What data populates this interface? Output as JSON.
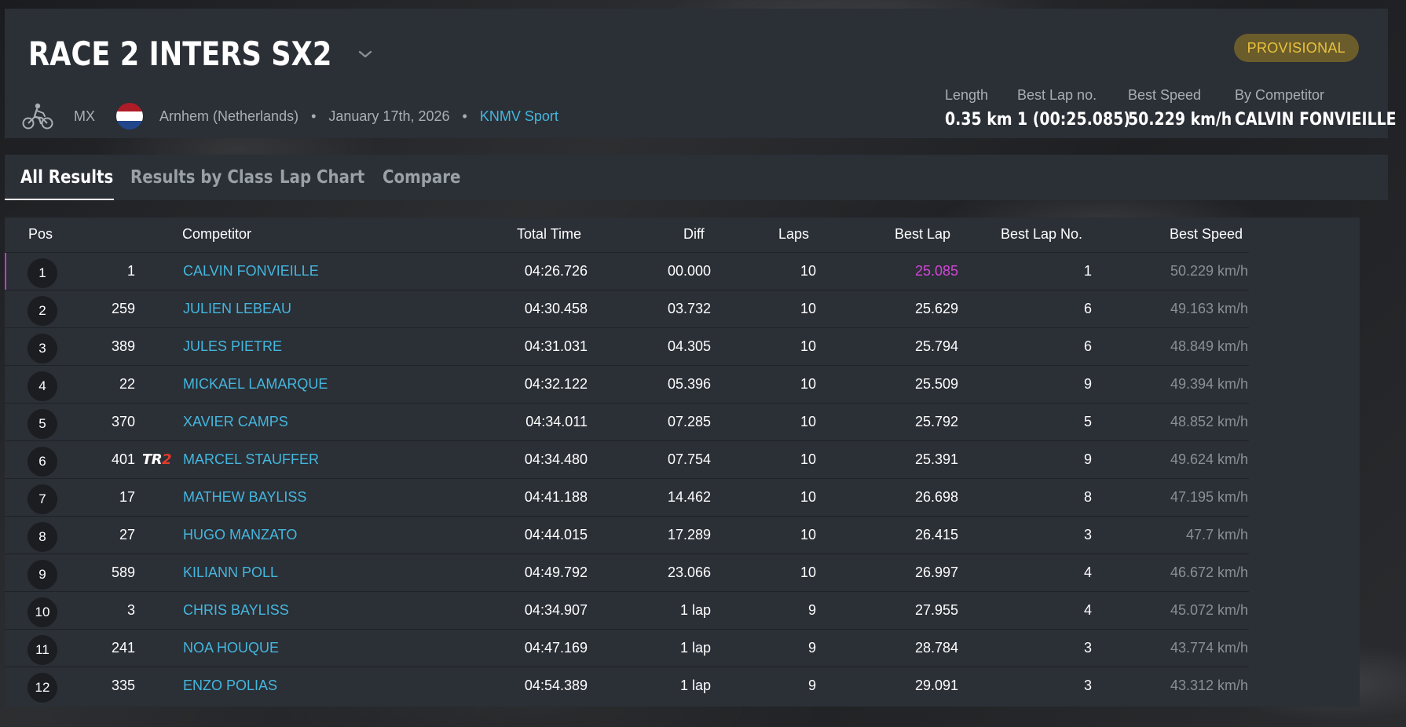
{
  "header": {
    "title": "RACE 2 INTERS SX2",
    "status_badge": "PROVISIONAL",
    "discipline": "MX",
    "location": "Arnhem (Netherlands)",
    "date": "January 17th, 2026",
    "organizer": "KNMV Sport",
    "separator": "•",
    "flag_colors": [
      "#ae1c28",
      "#ffffff",
      "#21468b"
    ],
    "stats": [
      {
        "label": "Length",
        "value": "0.35 km"
      },
      {
        "label": "Best Lap no.",
        "value": "1 (00:25.085)"
      },
      {
        "label": "Best Speed",
        "value": "50.229 km/h"
      },
      {
        "label": "By Competitor",
        "value": "CALVIN FONVIEILLE"
      }
    ]
  },
  "tabs": [
    "All Results",
    "Results by Class",
    "Lap Chart",
    "Compare"
  ],
  "table": {
    "columns": [
      "Pos",
      "Competitor",
      "Total Time",
      "Diff",
      "Laps",
      "Best Lap",
      "Best Lap No.",
      "Best Speed"
    ],
    "rows": [
      {
        "pos": "1",
        "num": "1",
        "name": "CALVIN FONVIEILLE",
        "total": "04:26.726",
        "diff": "00.000",
        "laps": "10",
        "best_lap": "25.085",
        "best_lap_no": "1",
        "best_speed": "50.229 km/h"
      },
      {
        "pos": "2",
        "num": "259",
        "name": "JULIEN LEBEAU",
        "total": "04:30.458",
        "diff": "03.732",
        "laps": "10",
        "best_lap": "25.629",
        "best_lap_no": "6",
        "best_speed": "49.163 km/h"
      },
      {
        "pos": "3",
        "num": "389",
        "name": "JULES PIETRE",
        "total": "04:31.031",
        "diff": "04.305",
        "laps": "10",
        "best_lap": "25.794",
        "best_lap_no": "6",
        "best_speed": "48.849 km/h"
      },
      {
        "pos": "4",
        "num": "22",
        "name": "MICKAEL LAMARQUE",
        "total": "04:32.122",
        "diff": "05.396",
        "laps": "10",
        "best_lap": "25.509",
        "best_lap_no": "9",
        "best_speed": "49.394 km/h"
      },
      {
        "pos": "5",
        "num": "370",
        "name": "XAVIER CAMPS",
        "total": "04:34.011",
        "diff": "07.285",
        "laps": "10",
        "best_lap": "25.792",
        "best_lap_no": "5",
        "best_speed": "48.852 km/h"
      },
      {
        "pos": "6",
        "num": "401",
        "name": "MARCEL STAUFFER",
        "total": "04:34.480",
        "diff": "07.754",
        "laps": "10",
        "best_lap": "25.391",
        "best_lap_no": "9",
        "best_speed": "49.624 km/h",
        "team_logo": [
          "TR",
          "2"
        ]
      },
      {
        "pos": "7",
        "num": "17",
        "name": "MATHEW BAYLISS",
        "total": "04:41.188",
        "diff": "14.462",
        "laps": "10",
        "best_lap": "26.698",
        "best_lap_no": "8",
        "best_speed": "47.195 km/h"
      },
      {
        "pos": "8",
        "num": "27",
        "name": "HUGO MANZATO",
        "total": "04:44.015",
        "diff": "17.289",
        "laps": "10",
        "best_lap": "26.415",
        "best_lap_no": "3",
        "best_speed": "47.7 km/h"
      },
      {
        "pos": "9",
        "num": "589",
        "name": "KILIANN POLL",
        "total": "04:49.792",
        "diff": "23.066",
        "laps": "10",
        "best_lap": "26.997",
        "best_lap_no": "4",
        "best_speed": "46.672 km/h"
      },
      {
        "pos": "10",
        "num": "3",
        "name": "CHRIS BAYLISS",
        "total": "04:34.907",
        "diff": "1 lap",
        "laps": "9",
        "best_lap": "27.955",
        "best_lap_no": "4",
        "best_speed": "45.072 km/h"
      },
      {
        "pos": "11",
        "num": "241",
        "name": "NOA HOUQUE",
        "total": "04:47.169",
        "diff": "1 lap",
        "laps": "9",
        "best_lap": "28.784",
        "best_lap_no": "3",
        "best_speed": "43.774 km/h"
      },
      {
        "pos": "12",
        "num": "335",
        "name": "ENZO POLIAS",
        "total": "04:54.389",
        "diff": "1 lap",
        "laps": "9",
        "best_lap": "29.091",
        "best_lap_no": "3",
        "best_speed": "43.312 km/h"
      }
    ]
  },
  "colors": {
    "accent_link": "#44b7de",
    "best_lap_highlight": "#d247d6",
    "badge_text": "#e9c23d",
    "badge_bg": "#6b5c2b",
    "panel_bg": "#2b2f36"
  },
  "icons": {
    "discipline": "motocross-bike-icon",
    "title_dropdown": "chevron-down-icon",
    "country_flag": "netherlands-flag-icon"
  }
}
